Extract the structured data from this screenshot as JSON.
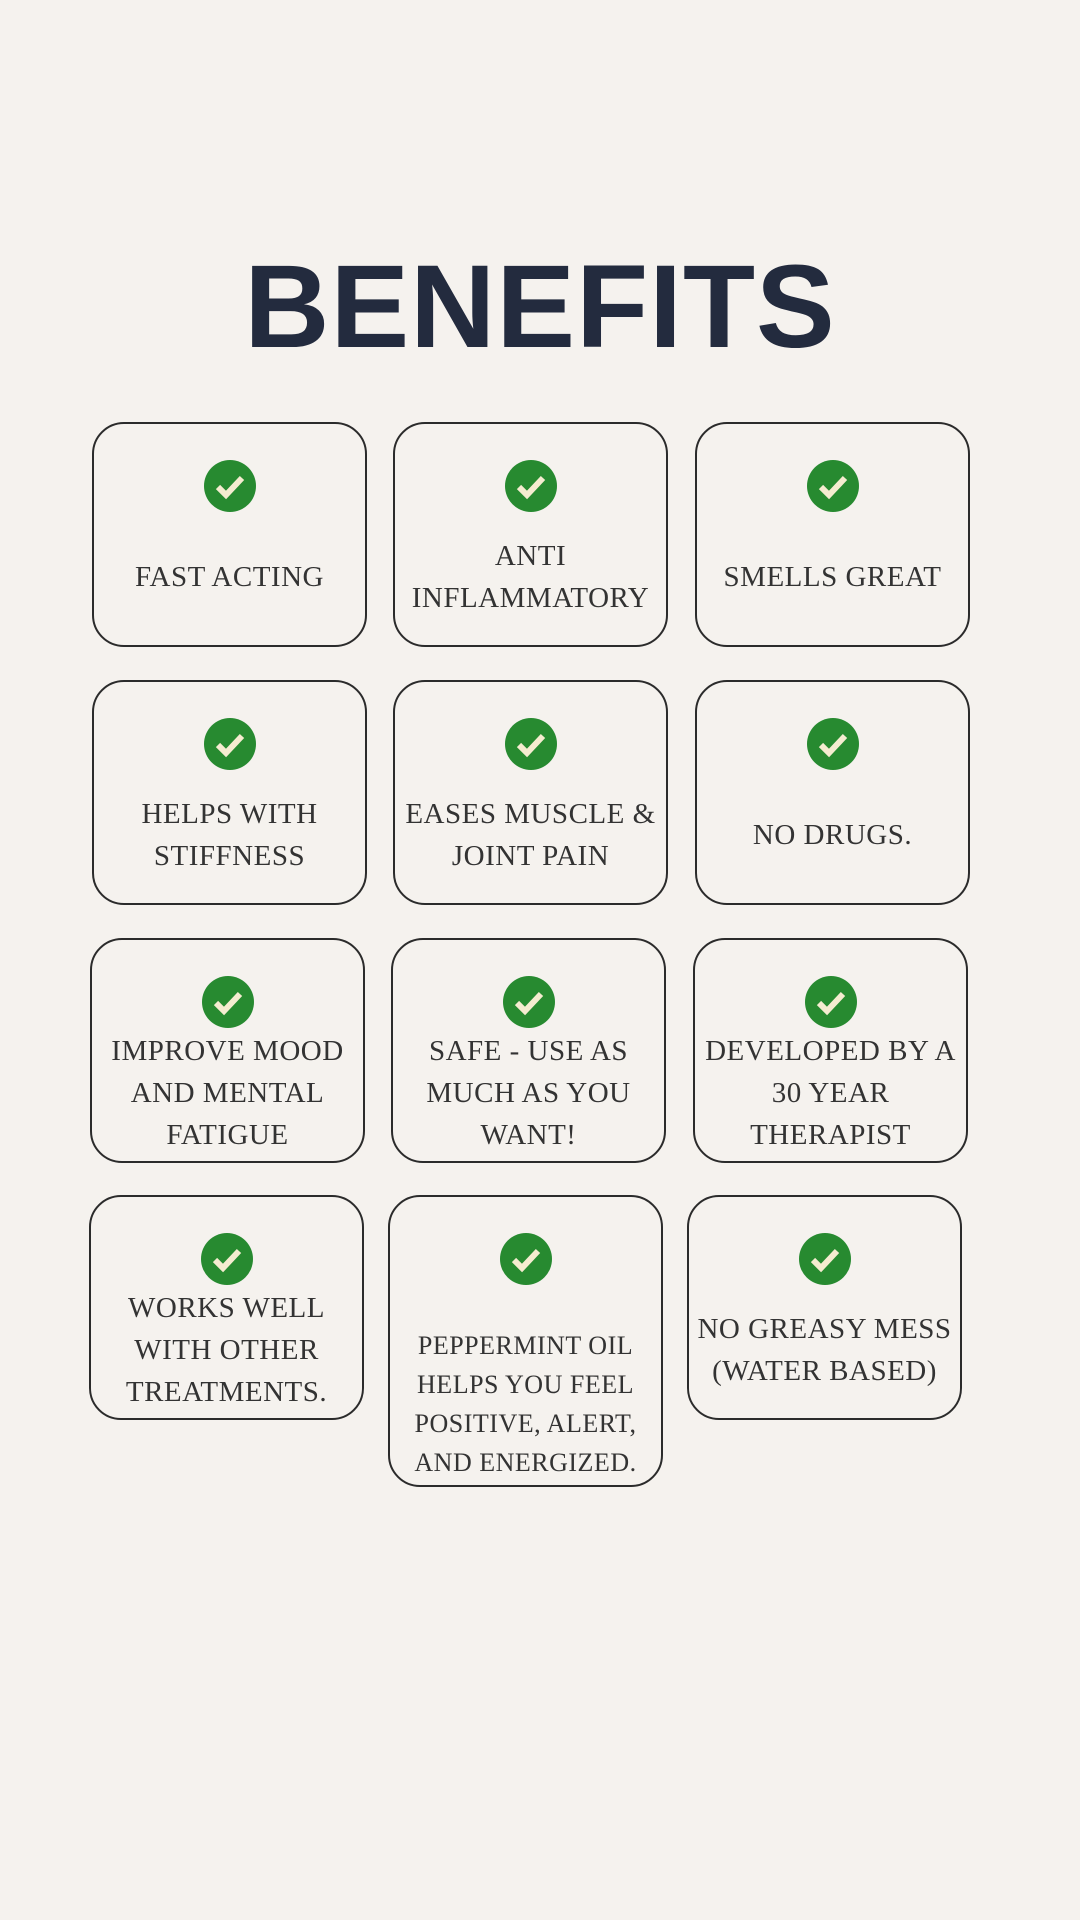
{
  "title": "BENEFITS",
  "colors": {
    "background": "#f5f2ee",
    "title": "#232b3e",
    "check_circle": "#278a30",
    "check_mark": "#f5ecd0",
    "border": "#2b2b2b"
  },
  "cards": [
    {
      "icon": "check-circle-icon",
      "lines": [
        "FAST ACTING"
      ]
    },
    {
      "icon": "check-circle-icon",
      "lines": [
        "ANTI",
        "INFLAMMATORY"
      ]
    },
    {
      "icon": "check-circle-icon",
      "lines": [
        "SMELLS GREAT"
      ]
    },
    {
      "icon": "check-circle-icon",
      "lines": [
        "HELPS WITH",
        "STIFFNESS"
      ]
    },
    {
      "icon": "check-circle-icon",
      "lines": [
        "EASES MUSCLE &",
        "JOINT PAIN"
      ]
    },
    {
      "icon": "check-circle-icon",
      "lines": [
        "NO DRUGS."
      ]
    },
    {
      "icon": "check-circle-icon",
      "lines": [
        "IMPROVE MOOD",
        "AND MENTAL",
        "FATIGUE"
      ]
    },
    {
      "icon": "check-circle-icon",
      "lines": [
        "SAFE - USE AS",
        "MUCH AS YOU",
        "WANT!"
      ]
    },
    {
      "icon": "check-circle-icon",
      "lines": [
        "DEVELOPED BY A",
        "30 YEAR",
        "THERAPIST"
      ]
    },
    {
      "icon": "check-circle-icon",
      "lines": [
        "WORKS WELL",
        "WITH OTHER",
        "TREATMENTS."
      ]
    },
    {
      "icon": "check-circle-icon",
      "lines": [
        "PEPPERMINT OIL",
        "HELPS YOU FEEL",
        "POSITIVE, ALERT,",
        "AND ENERGIZED."
      ]
    },
    {
      "icon": "check-circle-icon",
      "lines": [
        "NO GREASY MESS",
        "(WATER BASED)"
      ]
    }
  ]
}
